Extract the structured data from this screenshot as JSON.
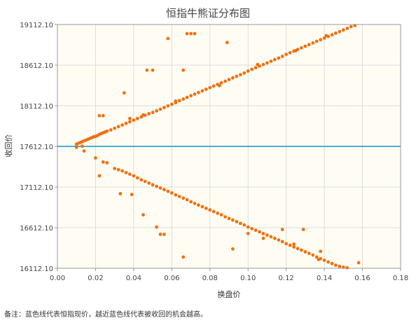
{
  "chart_data": {
    "type": "scatter",
    "title": "恒指牛熊证分布图",
    "xlabel": "换盘价",
    "ylabel": "收回价",
    "xlim": [
      0,
      0.18
    ],
    "ylim": [
      16112.1,
      19112.1
    ],
    "x_ticks": [
      "0.00",
      "0.02",
      "0.04",
      "0.06",
      "0.08",
      "0.10",
      "0.12",
      "0.14",
      "0.16",
      "0.18"
    ],
    "y_ticks": [
      "16112.10",
      "16612.10",
      "17112.10",
      "17612.10",
      "18112.10",
      "18612.10",
      "19112.10"
    ],
    "grid": true,
    "reference_line": {
      "y": 17612.1,
      "color": "#4aaed0"
    },
    "point_color": "#f07010",
    "plot_background": "#fffdf3",
    "series": [
      {
        "values": [
          [
            0.01,
            17640
          ],
          [
            0.011,
            17650
          ],
          [
            0.012,
            17660
          ],
          [
            0.013,
            17670
          ],
          [
            0.014,
            17680
          ],
          [
            0.015,
            17690
          ],
          [
            0.016,
            17700
          ],
          [
            0.017,
            17710
          ],
          [
            0.018,
            17720
          ],
          [
            0.019,
            17730
          ],
          [
            0.02,
            17735
          ],
          [
            0.021,
            17745
          ],
          [
            0.022,
            17760
          ],
          [
            0.023,
            17770
          ],
          [
            0.024,
            17780
          ],
          [
            0.025,
            17790
          ],
          [
            0.026,
            17800
          ],
          [
            0.028,
            17815
          ],
          [
            0.03,
            17835
          ],
          [
            0.032,
            17855
          ],
          [
            0.034,
            17875
          ],
          [
            0.036,
            17895
          ],
          [
            0.038,
            17915
          ],
          [
            0.04,
            17935
          ],
          [
            0.042,
            17955
          ],
          [
            0.044,
            17975
          ],
          [
            0.046,
            17995
          ],
          [
            0.048,
            18015
          ],
          [
            0.05,
            18030
          ],
          [
            0.052,
            18050
          ],
          [
            0.054,
            18070
          ],
          [
            0.056,
            18090
          ],
          [
            0.058,
            18110
          ],
          [
            0.06,
            18130
          ],
          [
            0.062,
            18150
          ],
          [
            0.064,
            18175
          ],
          [
            0.066,
            18195
          ],
          [
            0.068,
            18215
          ],
          [
            0.07,
            18235
          ],
          [
            0.072,
            18255
          ],
          [
            0.074,
            18275
          ],
          [
            0.076,
            18295
          ],
          [
            0.078,
            18315
          ],
          [
            0.08,
            18335
          ],
          [
            0.082,
            18355
          ],
          [
            0.084,
            18375
          ],
          [
            0.086,
            18395
          ],
          [
            0.088,
            18415
          ],
          [
            0.09,
            18435
          ],
          [
            0.092,
            18455
          ],
          [
            0.094,
            18475
          ],
          [
            0.096,
            18495
          ],
          [
            0.098,
            18515
          ],
          [
            0.1,
            18540
          ],
          [
            0.102,
            18560
          ],
          [
            0.104,
            18580
          ],
          [
            0.106,
            18600
          ],
          [
            0.108,
            18620
          ],
          [
            0.11,
            18640
          ],
          [
            0.112,
            18660
          ],
          [
            0.114,
            18680
          ],
          [
            0.116,
            18700
          ],
          [
            0.118,
            18720
          ],
          [
            0.12,
            18745
          ],
          [
            0.122,
            18765
          ],
          [
            0.124,
            18785
          ],
          [
            0.126,
            18805
          ],
          [
            0.128,
            18825
          ],
          [
            0.13,
            18845
          ],
          [
            0.132,
            18865
          ],
          [
            0.134,
            18885
          ],
          [
            0.136,
            18905
          ],
          [
            0.138,
            18925
          ],
          [
            0.14,
            18945
          ],
          [
            0.142,
            18965
          ],
          [
            0.144,
            18985
          ],
          [
            0.146,
            19005
          ],
          [
            0.148,
            19025
          ],
          [
            0.15,
            19045
          ],
          [
            0.152,
            19065
          ],
          [
            0.154,
            19085
          ],
          [
            0.156,
            19100
          ],
          [
            0.038,
            17955
          ],
          [
            0.045,
            18000
          ],
          [
            0.062,
            18170
          ],
          [
            0.085,
            18360
          ],
          [
            0.105,
            18620
          ],
          [
            0.125,
            18790
          ],
          [
            0.141,
            18975
          ],
          [
            0.01,
            17600
          ],
          [
            0.013,
            17615
          ],
          [
            0.022,
            17990
          ],
          [
            0.024,
            17990
          ],
          [
            0.035,
            18270
          ],
          [
            0.047,
            18550
          ],
          [
            0.05,
            18550
          ],
          [
            0.066,
            18550
          ],
          [
            0.058,
            18940
          ],
          [
            0.068,
            19000
          ],
          [
            0.07,
            19000
          ],
          [
            0.072,
            19000
          ],
          [
            0.089,
            18890
          ],
          [
            0.014,
            17555
          ],
          [
            0.02,
            17470
          ],
          [
            0.024,
            17420
          ],
          [
            0.026,
            17410
          ],
          [
            0.03,
            17340
          ],
          [
            0.032,
            17325
          ],
          [
            0.034,
            17310
          ],
          [
            0.036,
            17290
          ],
          [
            0.038,
            17270
          ],
          [
            0.04,
            17250
          ],
          [
            0.042,
            17225
          ],
          [
            0.044,
            17200
          ],
          [
            0.046,
            17180
          ],
          [
            0.048,
            17160
          ],
          [
            0.05,
            17140
          ],
          [
            0.052,
            17120
          ],
          [
            0.054,
            17100
          ],
          [
            0.056,
            17080
          ],
          [
            0.058,
            17060
          ],
          [
            0.06,
            17040
          ],
          [
            0.062,
            17015
          ],
          [
            0.064,
            16995
          ],
          [
            0.066,
            16975
          ],
          [
            0.068,
            16955
          ],
          [
            0.07,
            16930
          ],
          [
            0.072,
            16910
          ],
          [
            0.074,
            16890
          ],
          [
            0.076,
            16870
          ],
          [
            0.078,
            16850
          ],
          [
            0.08,
            16830
          ],
          [
            0.082,
            16810
          ],
          [
            0.084,
            16790
          ],
          [
            0.086,
            16770
          ],
          [
            0.088,
            16745
          ],
          [
            0.09,
            16725
          ],
          [
            0.092,
            16705
          ],
          [
            0.094,
            16685
          ],
          [
            0.096,
            16665
          ],
          [
            0.098,
            16645
          ],
          [
            0.1,
            16620
          ],
          [
            0.102,
            16600
          ],
          [
            0.104,
            16580
          ],
          [
            0.106,
            16560
          ],
          [
            0.108,
            16540
          ],
          [
            0.11,
            16520
          ],
          [
            0.112,
            16500
          ],
          [
            0.114,
            16480
          ],
          [
            0.116,
            16460
          ],
          [
            0.118,
            16440
          ],
          [
            0.12,
            16415
          ],
          [
            0.122,
            16395
          ],
          [
            0.124,
            16375
          ],
          [
            0.126,
            16355
          ],
          [
            0.128,
            16335
          ],
          [
            0.13,
            16315
          ],
          [
            0.132,
            16295
          ],
          [
            0.134,
            16275
          ],
          [
            0.136,
            16250
          ],
          [
            0.138,
            16230
          ],
          [
            0.14,
            16210
          ],
          [
            0.142,
            16190
          ],
          [
            0.144,
            16170
          ],
          [
            0.146,
            16150
          ],
          [
            0.148,
            16135
          ],
          [
            0.15,
            16125
          ],
          [
            0.152,
            16118
          ],
          [
            0.022,
            17250
          ],
          [
            0.033,
            17030
          ],
          [
            0.039,
            17020
          ],
          [
            0.045,
            16770
          ],
          [
            0.052,
            16620
          ],
          [
            0.054,
            16530
          ],
          [
            0.056,
            16530
          ],
          [
            0.066,
            16250
          ],
          [
            0.092,
            16350
          ],
          [
            0.1,
            16540
          ],
          [
            0.118,
            16590
          ],
          [
            0.129,
            16590
          ],
          [
            0.138,
            16320
          ],
          [
            0.158,
            16180
          ],
          [
            0.108,
            16480
          ],
          [
            0.124,
            16410
          ],
          [
            0.137,
            16220
          ]
        ]
      }
    ]
  },
  "footnote": "备注：蓝色线代表恒指现价，越近蓝色线代表被收回的机会越高。"
}
